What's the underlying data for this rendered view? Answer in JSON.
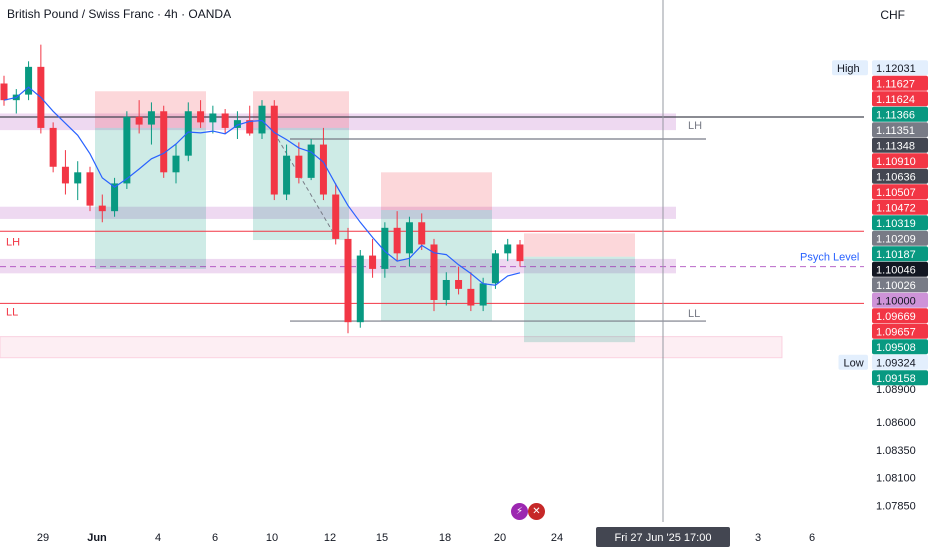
{
  "header": {
    "title": "British Pound / Swiss Franc · 4h · OANDA",
    "currency": "CHF"
  },
  "colors": {
    "up": "#089981",
    "down": "#f23645",
    "ma": "#2962ff",
    "supply_zone": "#ce93d8",
    "red_line": "#f23645",
    "dark_line": "#434651",
    "psych": "#9c27b0"
  },
  "event_icons": [
    "lightning-icon",
    "uk-flag-icon"
  ],
  "chart_data": {
    "type": "candlestick",
    "symbol": "GBPCHF",
    "timeframe": "4h",
    "ylim": [
      1.077,
      1.1215
    ],
    "price_scale_ticks": [
      1.089,
      1.086,
      1.0835,
      1.081,
      1.0785
    ],
    "x_ticks": [
      "29",
      "Jun",
      "4",
      "6",
      "10",
      "12",
      "15",
      "18",
      "20",
      "24",
      "3",
      "6"
    ],
    "cursor_time_label": "Fri 27 Jun '25   17:00",
    "price_tags": [
      {
        "label": "High",
        "value": "1.12031",
        "style": "label"
      },
      {
        "value": "1.11627",
        "style": "down"
      },
      {
        "value": "1.11624",
        "style": "down"
      },
      {
        "value": "1.11366",
        "style": "up"
      },
      {
        "value": "1.11351",
        "style": "gray"
      },
      {
        "value": "1.11348",
        "style": "dark"
      },
      {
        "value": "1.10910",
        "style": "down"
      },
      {
        "value": "1.10636",
        "style": "dark"
      },
      {
        "value": "1.10507",
        "style": "down"
      },
      {
        "value": "1.10472",
        "style": "down"
      },
      {
        "value": "1.10319",
        "style": "up"
      },
      {
        "value": "1.10209",
        "style": "gray"
      },
      {
        "value": "1.10187",
        "style": "up"
      },
      {
        "value": "1.10046",
        "style": "black"
      },
      {
        "value": "1.10026",
        "style": "gray"
      },
      {
        "value": "1.10000",
        "style": "purple"
      },
      {
        "value": "1.09669",
        "style": "down"
      },
      {
        "value": "1.09657",
        "style": "down"
      },
      {
        "value": "1.09508",
        "style": "up"
      },
      {
        "label": "Low",
        "value": "1.09324",
        "style": "label"
      },
      {
        "value": "1.09158",
        "style": "up"
      }
    ],
    "annotations": [
      {
        "text": "LH",
        "price": 1.1135
      },
      {
        "text": "LH",
        "price": 1.103
      },
      {
        "text": "Psych Level",
        "price": 1.1
      },
      {
        "text": "LL",
        "price": 1.0967
      },
      {
        "text": "LL",
        "price": 1.0951
      }
    ],
    "series": [
      {
        "name": "",
        "type": "candles",
        "ohlc_sampled": [
          [
            1.1165,
            1.1172,
            1.1145,
            1.115
          ],
          [
            1.115,
            1.116,
            1.1138,
            1.1155
          ],
          [
            1.1155,
            1.1185,
            1.115,
            1.118
          ],
          [
            1.118,
            1.12,
            1.112,
            1.1125
          ],
          [
            1.1125,
            1.113,
            1.1085,
            1.109
          ],
          [
            1.109,
            1.1105,
            1.1065,
            1.1075
          ],
          [
            1.1075,
            1.1095,
            1.106,
            1.1085
          ],
          [
            1.1085,
            1.109,
            1.105,
            1.1055
          ],
          [
            1.1055,
            1.1065,
            1.104,
            1.105
          ],
          [
            1.105,
            1.108,
            1.1045,
            1.1075
          ],
          [
            1.1075,
            1.114,
            1.107,
            1.1135
          ],
          [
            1.1135,
            1.115,
            1.112,
            1.1128
          ],
          [
            1.1128,
            1.1148,
            1.111,
            1.114
          ],
          [
            1.114,
            1.1145,
            1.108,
            1.1085
          ],
          [
            1.1085,
            1.111,
            1.1075,
            1.11
          ],
          [
            1.11,
            1.1148,
            1.1095,
            1.114
          ],
          [
            1.114,
            1.115,
            1.1125,
            1.113
          ],
          [
            1.113,
            1.1145,
            1.112,
            1.1138
          ],
          [
            1.1138,
            1.1142,
            1.112,
            1.1125
          ],
          [
            1.1125,
            1.114,
            1.1115,
            1.1132
          ],
          [
            1.1132,
            1.1145,
            1.1118,
            1.112
          ],
          [
            1.112,
            1.115,
            1.1115,
            1.1145
          ],
          [
            1.1145,
            1.115,
            1.106,
            1.1065
          ],
          [
            1.1065,
            1.111,
            1.106,
            1.11
          ],
          [
            1.11,
            1.1112,
            1.1075,
            1.108
          ],
          [
            1.108,
            1.1115,
            1.1078,
            1.111
          ],
          [
            1.111,
            1.1125,
            1.106,
            1.1065
          ],
          [
            1.1065,
            1.1075,
            1.102,
            1.1025
          ],
          [
            1.1025,
            1.1035,
            1.094,
            1.095
          ],
          [
            1.095,
            1.1015,
            1.0945,
            1.101
          ],
          [
            1.101,
            1.1025,
            1.099,
            1.0998
          ],
          [
            1.0998,
            1.104,
            1.099,
            1.1035
          ],
          [
            1.1035,
            1.105,
            1.1005,
            1.1012
          ],
          [
            1.1012,
            1.1045,
            1.1,
            1.104
          ],
          [
            1.104,
            1.1048,
            1.1015,
            1.102
          ],
          [
            1.102,
            1.1025,
            1.096,
            1.097
          ],
          [
            1.097,
            1.0995,
            1.0965,
            1.0988
          ],
          [
            1.0988,
            1.1,
            1.0975,
            1.098
          ],
          [
            1.098,
            1.0995,
            1.096,
            1.0965
          ],
          [
            1.0965,
            1.099,
            1.096,
            1.0985
          ],
          [
            1.0985,
            1.1015,
            1.098,
            1.1012
          ],
          [
            1.1012,
            1.1025,
            1.1005,
            1.102
          ],
          [
            1.102,
            1.1024,
            1.1,
            1.1005
          ]
        ]
      },
      {
        "name": "",
        "type": "moving_average"
      }
    ]
  }
}
